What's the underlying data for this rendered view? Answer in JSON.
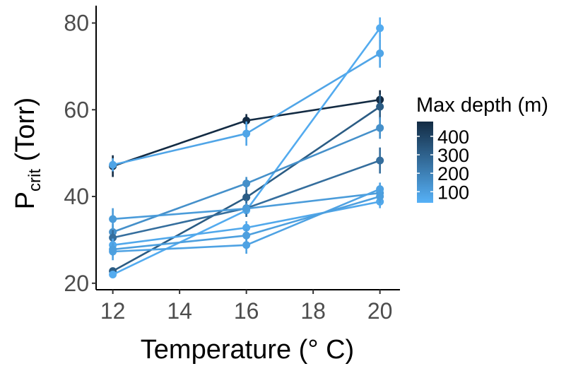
{
  "chart_data": {
    "type": "line",
    "title": "",
    "xlabel": "Temperature (° C)",
    "ylabel_main": "P",
    "ylabel_sub": "crit",
    "ylabel_unit": " (Torr)",
    "xlim": [
      11.5,
      20.6
    ],
    "ylim": [
      18.5,
      84
    ],
    "x_ticks": [
      12,
      14,
      16,
      18,
      20
    ],
    "y_ticks": [
      20,
      40,
      60,
      80
    ],
    "grid": false,
    "legend": {
      "title": "Max depth (m)",
      "position": "right",
      "type": "colorbar",
      "range": [
        40,
        480
      ],
      "ticks": [
        100,
        200,
        300,
        400
      ],
      "color_low": "#56B1F7",
      "color_high": "#132B43"
    },
    "series": [
      {
        "depth": 480,
        "x": [
          12,
          16,
          20
        ],
        "y": [
          47.0,
          57.5,
          62.3
        ],
        "err": [
          2.5,
          1.5,
          2.2
        ]
      },
      {
        "depth": 80,
        "x": [
          12,
          16,
          20
        ],
        "y": [
          47.3,
          54.5,
          73.0
        ],
        "err": [
          1.5,
          2.8,
          3.3
        ]
      },
      {
        "depth": 320,
        "x": [
          12,
          16,
          20
        ],
        "y": [
          22.8,
          39.8,
          60.7
        ],
        "err": [
          0.8,
          2.5,
          2.8
        ]
      },
      {
        "depth": 60,
        "x": [
          12,
          16,
          20
        ],
        "y": [
          22.0,
          36.8,
          78.8
        ],
        "err": [
          0.8,
          1.5,
          2.5
        ]
      },
      {
        "depth": 150,
        "x": [
          12,
          16,
          20
        ],
        "y": [
          31.8,
          43.0,
          55.8
        ],
        "err": [
          1.8,
          1.5,
          2.5
        ]
      },
      {
        "depth": 260,
        "x": [
          12,
          16,
          20
        ],
        "y": [
          30.5,
          37.3,
          48.3
        ],
        "err": [
          2.0,
          2.0,
          3.0
        ]
      },
      {
        "depth": 110,
        "x": [
          12,
          16,
          20
        ],
        "y": [
          34.8,
          37.2,
          40.8
        ],
        "err": [
          2.5,
          1.2,
          1.5
        ]
      },
      {
        "depth": 70,
        "x": [
          12,
          16,
          20
        ],
        "y": [
          28.8,
          32.8,
          38.8
        ],
        "err": [
          1.5,
          1.5,
          1.5
        ]
      },
      {
        "depth": 90,
        "x": [
          12,
          16,
          20
        ],
        "y": [
          27.3,
          28.8,
          41.7
        ],
        "err": [
          2.0,
          2.0,
          1.5
        ]
      },
      {
        "depth": 100,
        "x": [
          12,
          16,
          20
        ],
        "y": [
          27.8,
          31.0,
          40.0
        ],
        "err": [
          1.5,
          1.5,
          1.5
        ]
      }
    ]
  }
}
